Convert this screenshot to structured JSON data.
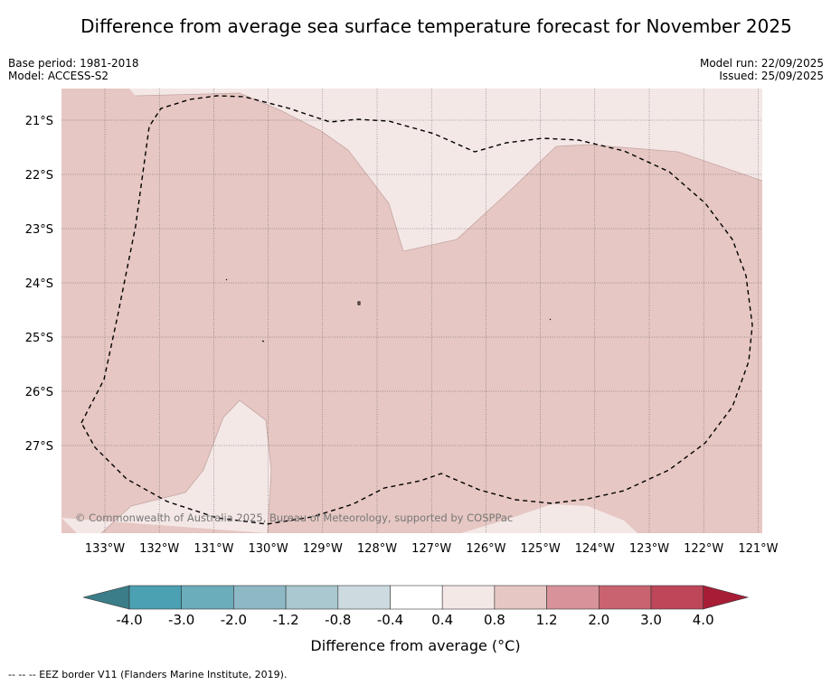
{
  "title": "Difference from average sea surface temperature forecast for November 2025",
  "meta": {
    "base_period": "Base period: 1981-2018",
    "model": "Model: ACCESS-S2",
    "model_run": "Model run: 22/09/2025",
    "issued": "Issued: 25/09/2025"
  },
  "map": {
    "lat_labels": [
      "21°S",
      "22°S",
      "23°S",
      "24°S",
      "25°S",
      "26°S",
      "27°S"
    ],
    "lon_labels": [
      "133°W",
      "132°W",
      "131°W",
      "130°W",
      "129°W",
      "128°W",
      "127°W",
      "126°W",
      "125°W",
      "124°W",
      "123°W",
      "122°W",
      "121°W"
    ],
    "copyright": "© Commonwealth of Australia 2025, Bureau of Meteorology, supported by COSPPac",
    "fill_colors": {
      "band_0_8_1_2": "#e6c7c3",
      "band_0_4_0_8": "#f4e8e7"
    }
  },
  "colorbar": {
    "title": "Difference from average (°C)",
    "ticks": [
      "-4.0",
      "-3.0",
      "-2.0",
      "-1.2",
      "-0.8",
      "-0.4",
      "0.4",
      "0.8",
      "1.2",
      "2.0",
      "3.0",
      "4.0"
    ],
    "colors": [
      "#3b7d88",
      "#4ba0b2",
      "#6cadbc",
      "#8db9c5",
      "#a9c8cf",
      "#cddbe0",
      "#ffffff",
      "#f4e8e7",
      "#e6c7c3",
      "#d7929a",
      "#c8636f",
      "#bd4659",
      "#a71d36"
    ]
  },
  "footer": "--  --  -- EEZ border V11 (Flanders Marine Institute, 2019)."
}
